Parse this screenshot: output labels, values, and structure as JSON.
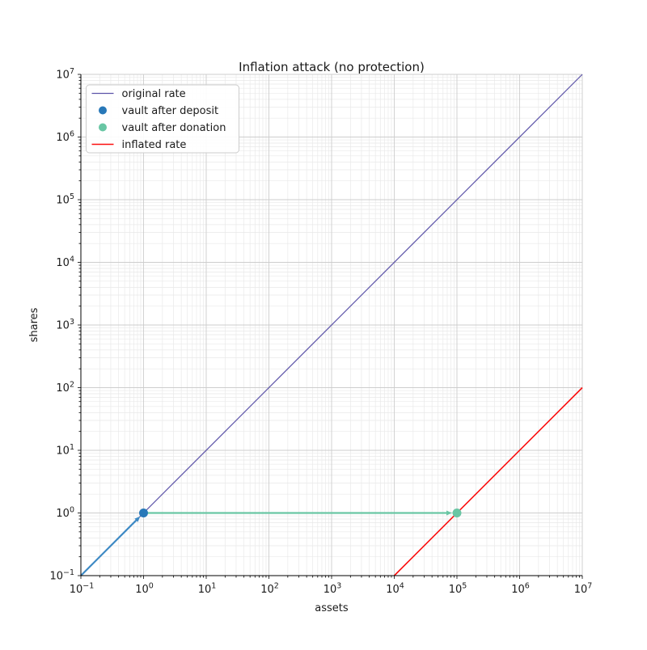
{
  "chart_data": {
    "type": "line",
    "title": "Inflation attack (no protection)",
    "xlabel": "assets",
    "ylabel": "shares",
    "xscale": "log",
    "yscale": "log",
    "xlim": [
      0.1,
      10000000
    ],
    "ylim": [
      0.1,
      10000000
    ],
    "x_tick_exponents": [
      -1,
      0,
      1,
      2,
      3,
      4,
      5,
      6,
      7
    ],
    "y_tick_exponents": [
      -1,
      0,
      1,
      2,
      3,
      4,
      5,
      6,
      7
    ],
    "grid": {
      "major": true,
      "minor": true
    },
    "series": [
      {
        "name": "original rate",
        "style": "line",
        "color": "#5c53a8",
        "width": 1.2,
        "points": [
          [
            0.1,
            0.1
          ],
          [
            10000000,
            10000000
          ]
        ]
      },
      {
        "name": "inflated rate",
        "style": "line",
        "color": "#fb0f0f",
        "width": 1.6,
        "points": [
          [
            10000,
            0.1
          ],
          [
            10000000,
            100
          ]
        ]
      }
    ],
    "scatter": [
      {
        "name": "vault after deposit",
        "color": "#2878b8",
        "x": 1,
        "y": 1,
        "radius": 5.5
      },
      {
        "name": "vault after donation",
        "color": "#69c6a4",
        "x": 100000,
        "y": 1,
        "radius": 5.5
      }
    ],
    "arrows": [
      {
        "name": "deposit-arrow",
        "color": "#3d89c4",
        "width": 2.2,
        "from": [
          0.1,
          0.1
        ],
        "to": [
          1,
          1
        ]
      },
      {
        "name": "donation-arrow",
        "color": "#69c6a4",
        "width": 2.2,
        "from": [
          1,
          1
        ],
        "to": [
          100000,
          1
        ]
      }
    ],
    "legend": {
      "position": "upper left",
      "entries": [
        {
          "label": "original rate",
          "marker": "line",
          "color": "#5c53a8",
          "width": 1.2
        },
        {
          "label": "vault after deposit",
          "marker": "dot",
          "color": "#2878b8"
        },
        {
          "label": "vault after donation",
          "marker": "dot",
          "color": "#69c6a4"
        },
        {
          "label": "inflated rate",
          "marker": "line",
          "color": "#fb0f0f",
          "width": 1.6
        }
      ]
    },
    "style": {
      "grid_major_color": "#cdcdcd",
      "grid_minor_color": "#e9e9e9",
      "spine_color": "#000000",
      "legend_border_color": "#cccccc",
      "legend_bg": "rgba(255,255,255,0.9)"
    }
  }
}
